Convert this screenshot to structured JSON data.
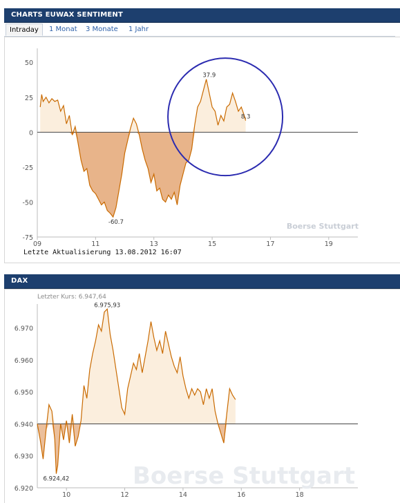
{
  "panel1": {
    "title": "CHARTS EUWAX SENTIMENT",
    "tabs": [
      "Intraday",
      "1 Monat",
      "3 Monate",
      "1 Jahr"
    ],
    "active_tab": "Intraday",
    "footer": "Letzte Aktualisierung 13.08.2012 16:07",
    "watermark": "Boerse Stuttgart"
  },
  "panel2": {
    "title": "DAX",
    "last_price": "Letzter Kurs: 6.947,64",
    "watermark": "Boerse Stuttgart"
  },
  "colors": {
    "header_bg": "#1d3f6e",
    "line": "#c96a00",
    "fill_positive": "#fbeedd",
    "fill_negative": "#e8b48a",
    "circle": "#2b2bb0",
    "tab_link": "#2a5ea8"
  },
  "chart_data": [
    {
      "type": "area",
      "title": "CHARTS EUWAX SENTIMENT",
      "xlim": [
        9,
        20
      ],
      "ylim": [
        -75,
        60
      ],
      "xticks": [
        "09",
        "11",
        "13",
        "15",
        "17",
        "19"
      ],
      "yticks": [
        "50",
        "25",
        "0",
        "-25",
        "-50",
        "-75"
      ],
      "baseline": 0,
      "annotations": [
        {
          "label": "37.9",
          "x": 14.9,
          "y": 37.9
        },
        {
          "label": "-60.7",
          "x": 11.7,
          "y": -60.7
        },
        {
          "label": "8.3",
          "x": 16.15,
          "y": 8.3
        }
      ],
      "highlight_circle_center": {
        "x": 15.45,
        "y": 11
      },
      "series": [
        {
          "x": [
            9.1,
            9.15,
            9.2,
            9.3,
            9.4,
            9.5,
            9.6,
            9.7,
            9.8,
            9.9,
            10.0,
            10.1,
            10.2,
            10.3,
            10.4,
            10.5,
            10.6,
            10.7,
            10.8,
            10.9,
            11.0,
            11.1,
            11.2,
            11.3,
            11.4,
            11.5,
            11.6,
            11.7,
            11.8,
            11.9,
            12.0,
            12.1,
            12.2,
            12.3,
            12.4,
            12.5,
            12.6,
            12.7,
            12.8,
            12.9,
            13.0,
            13.1,
            13.2,
            13.3,
            13.4,
            13.5,
            13.6,
            13.7,
            13.8,
            13.9,
            14.0,
            14.1,
            14.2,
            14.3,
            14.4,
            14.5,
            14.6,
            14.7,
            14.8,
            14.9,
            15.0,
            15.1,
            15.2,
            15.3,
            15.4,
            15.5,
            15.6,
            15.7,
            15.8,
            15.9,
            16.0,
            16.1,
            16.15
          ],
          "y": [
            18,
            27,
            22,
            25,
            21,
            24,
            22,
            23,
            15,
            19,
            6,
            12,
            -2,
            4,
            -8,
            -20,
            -28,
            -26,
            -38,
            -42,
            -44,
            -48,
            -52,
            -50,
            -56,
            -58,
            -60.7,
            -54,
            -42,
            -30,
            -15,
            -6,
            3,
            10,
            6,
            -2,
            -12,
            -20,
            -26,
            -36,
            -30,
            -42,
            -40,
            -48,
            -50,
            -45,
            -48,
            -43,
            -52,
            -38,
            -30,
            -22,
            -20,
            -12,
            5,
            18,
            22,
            30,
            37.9,
            28,
            18,
            15,
            5,
            12,
            8,
            18,
            20,
            28,
            22,
            15,
            18,
            12,
            8.3
          ]
        }
      ]
    },
    {
      "type": "area",
      "title": "DAX",
      "xlim": [
        9,
        20
      ],
      "ylim": [
        6.92,
        6.9775
      ],
      "xticks": [
        "10",
        "12",
        "14",
        "16",
        "18"
      ],
      "yticks": [
        "6.970",
        "6.960",
        "6.950",
        "6.940",
        "6.930",
        "6.920"
      ],
      "baseline": 6.94,
      "annotations": [
        {
          "label": "6.975,93",
          "x": 11.4,
          "y": 6.97593
        },
        {
          "label": "6.924,42",
          "x": 9.65,
          "y": 6.92442
        }
      ],
      "series": [
        {
          "x": [
            9.0,
            9.1,
            9.2,
            9.3,
            9.4,
            9.5,
            9.6,
            9.65,
            9.7,
            9.8,
            9.9,
            10.0,
            10.1,
            10.2,
            10.3,
            10.4,
            10.5,
            10.6,
            10.7,
            10.8,
            10.9,
            11.0,
            11.1,
            11.2,
            11.3,
            11.4,
            11.5,
            11.6,
            11.7,
            11.8,
            11.9,
            12.0,
            12.1,
            12.2,
            12.3,
            12.4,
            12.5,
            12.6,
            12.7,
            12.8,
            12.9,
            13.0,
            13.1,
            13.2,
            13.3,
            13.4,
            13.5,
            13.6,
            13.7,
            13.8,
            13.9,
            14.0,
            14.1,
            14.2,
            14.3,
            14.4,
            14.5,
            14.6,
            14.7,
            14.8,
            14.9,
            15.0,
            15.1,
            15.2,
            15.3,
            15.4,
            15.5,
            15.6,
            15.7,
            15.8
          ],
          "y": [
            6.94,
            6.935,
            6.929,
            6.938,
            6.946,
            6.944,
            6.935,
            6.9244,
            6.927,
            6.94,
            6.935,
            6.941,
            6.934,
            6.943,
            6.933,
            6.936,
            6.941,
            6.952,
            6.948,
            6.957,
            6.962,
            6.966,
            6.971,
            6.969,
            6.975,
            6.97593,
            6.968,
            6.963,
            6.957,
            6.951,
            6.945,
            6.943,
            6.951,
            6.955,
            6.959,
            6.957,
            6.962,
            6.956,
            6.961,
            6.966,
            6.972,
            6.967,
            6.963,
            6.966,
            6.962,
            6.969,
            6.965,
            6.961,
            6.958,
            6.956,
            6.961,
            6.955,
            6.951,
            6.948,
            6.951,
            6.949,
            6.951,
            6.95,
            6.946,
            6.951,
            6.948,
            6.951,
            6.944,
            6.94,
            6.937,
            6.934,
            6.943,
            6.951,
            6.949,
            6.9476
          ]
        }
      ]
    }
  ]
}
